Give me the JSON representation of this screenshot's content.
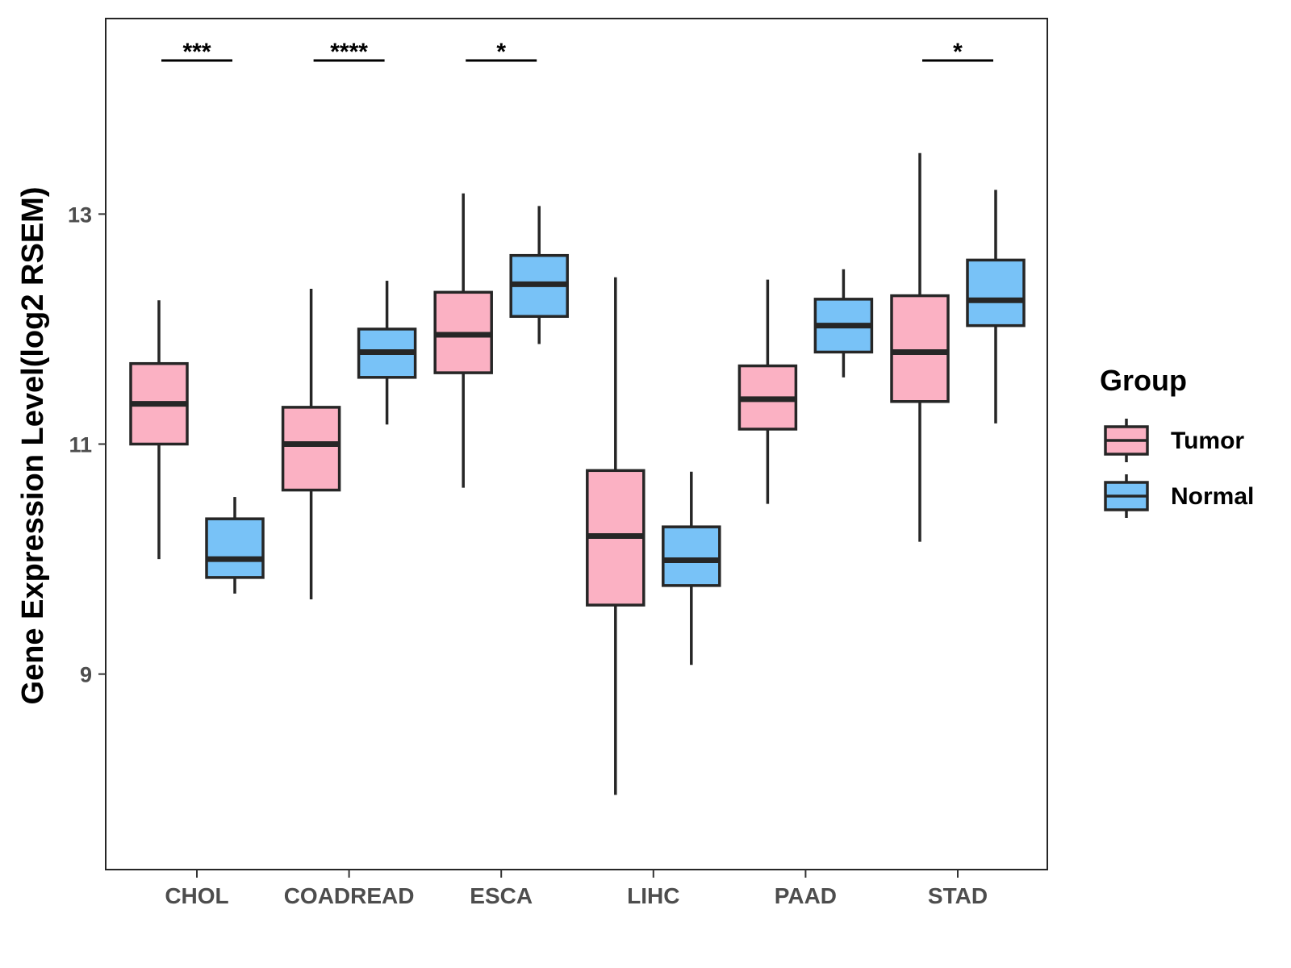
{
  "chart_data": {
    "type": "boxplot",
    "title": "",
    "xlabel": "",
    "ylabel": "Gene Expression Level(log2 RSEM)",
    "ylim": [
      7.3,
      14.7
    ],
    "yticks": [
      9,
      11,
      13
    ],
    "categories": [
      "CHOL",
      "COADREAD",
      "ESCA",
      "LIHC",
      "PAAD",
      "STAD"
    ],
    "legend": {
      "title": "Group",
      "position": "right"
    },
    "series": [
      {
        "name": "Tumor",
        "color": "#FBB1C3",
        "boxes": [
          {
            "min": 10.0,
            "q1": 11.0,
            "median": 11.35,
            "q3": 11.7,
            "max": 12.25
          },
          {
            "min": 9.65,
            "q1": 10.6,
            "median": 11.0,
            "q3": 11.32,
            "max": 12.35
          },
          {
            "min": 10.62,
            "q1": 11.62,
            "median": 11.95,
            "q3": 12.32,
            "max": 13.18
          },
          {
            "min": 7.95,
            "q1": 9.6,
            "median": 10.2,
            "q3": 10.77,
            "max": 12.45
          },
          {
            "min": 10.48,
            "q1": 11.13,
            "median": 11.39,
            "q3": 11.68,
            "max": 12.43
          },
          {
            "min": 10.15,
            "q1": 11.37,
            "median": 11.8,
            "q3": 12.29,
            "max": 13.53
          }
        ]
      },
      {
        "name": "Normal",
        "color": "#78C2F7",
        "boxes": [
          {
            "min": 9.7,
            "q1": 9.84,
            "median": 10.0,
            "q3": 10.35,
            "max": 10.54
          },
          {
            "min": 11.17,
            "q1": 11.58,
            "median": 11.8,
            "q3": 12.0,
            "max": 12.42
          },
          {
            "min": 11.87,
            "q1": 12.11,
            "median": 12.39,
            "q3": 12.64,
            "max": 13.07
          },
          {
            "min": 9.08,
            "q1": 9.77,
            "median": 9.99,
            "q3": 10.28,
            "max": 10.76
          },
          {
            "min": 11.58,
            "q1": 11.8,
            "median": 12.03,
            "q3": 12.26,
            "max": 12.52
          },
          {
            "min": 11.18,
            "q1": 12.03,
            "median": 12.25,
            "q3": 12.6,
            "max": 13.21
          }
        ]
      }
    ],
    "significance": [
      {
        "category": "CHOL",
        "label": "***"
      },
      {
        "category": "COADREAD",
        "label": "****"
      },
      {
        "category": "ESCA",
        "label": "*"
      },
      {
        "category": "LIHC",
        "label": ""
      },
      {
        "category": "PAAD",
        "label": ""
      },
      {
        "category": "STAD",
        "label": "*"
      }
    ]
  }
}
